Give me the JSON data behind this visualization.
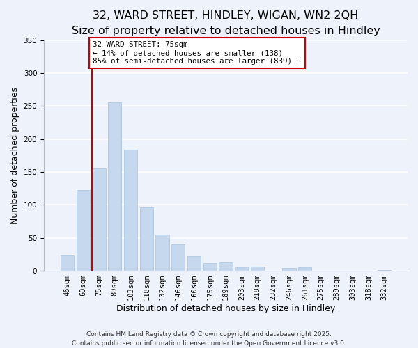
{
  "title": "32, WARD STREET, HINDLEY, WIGAN, WN2 2QH",
  "subtitle": "Size of property relative to detached houses in Hindley",
  "xlabel": "Distribution of detached houses by size in Hindley",
  "ylabel": "Number of detached properties",
  "bar_labels": [
    "46sqm",
    "60sqm",
    "75sqm",
    "89sqm",
    "103sqm",
    "118sqm",
    "132sqm",
    "146sqm",
    "160sqm",
    "175sqm",
    "189sqm",
    "203sqm",
    "218sqm",
    "232sqm",
    "246sqm",
    "261sqm",
    "275sqm",
    "289sqm",
    "303sqm",
    "318sqm",
    "332sqm"
  ],
  "bar_values": [
    23,
    123,
    155,
    256,
    184,
    96,
    55,
    40,
    22,
    12,
    13,
    5,
    6,
    0,
    4,
    5,
    0,
    0,
    0,
    0,
    1
  ],
  "bar_color": "#c5d8ee",
  "bar_edge_color": "#afc9e3",
  "vline_x_index": 2,
  "vline_color": "#cc0000",
  "annotation_title": "32 WARD STREET: 75sqm",
  "annotation_line1": "← 14% of detached houses are smaller (138)",
  "annotation_line2": "85% of semi-detached houses are larger (839) →",
  "annotation_box_color": "#ffffff",
  "annotation_box_edge": "#cc0000",
  "ylim": [
    0,
    350
  ],
  "background_color": "#eef2fa",
  "grid_color": "#ffffff",
  "footer1": "Contains HM Land Registry data © Crown copyright and database right 2025.",
  "footer2": "Contains public sector information licensed under the Open Government Licence v3.0.",
  "title_fontsize": 11.5,
  "subtitle_fontsize": 10,
  "axis_label_fontsize": 9,
  "tick_fontsize": 7.5,
  "annotation_fontsize": 7.8,
  "footer_fontsize": 6.5
}
